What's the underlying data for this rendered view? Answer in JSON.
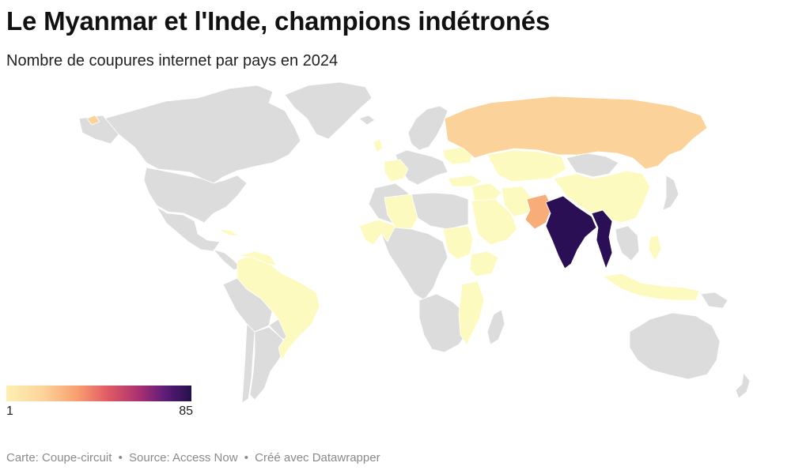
{
  "header": {
    "title": "Le Myanmar et l'Inde, champions indétronés",
    "subtitle": "Nombre de coupures internet par pays en 2024"
  },
  "legend": {
    "min_label": "1",
    "max_label": "85",
    "scale_colors": [
      "#fdf0b3",
      "#fcd39a",
      "#f8a070",
      "#e05a64",
      "#a83071",
      "#5c1b78",
      "#23104a"
    ]
  },
  "colors": {
    "no_data": "#dcdcdc",
    "low": "#fdfac0",
    "low_mid": "#fbd998",
    "mid": "#f9b97c",
    "high": "#2b0f55",
    "border": "#ffffff"
  },
  "footer": {
    "map_credit": "Carte: Coupe-circuit",
    "source": "Source: Access Now",
    "tool": "Créé avec Datawrapper",
    "separator": "•"
  }
}
